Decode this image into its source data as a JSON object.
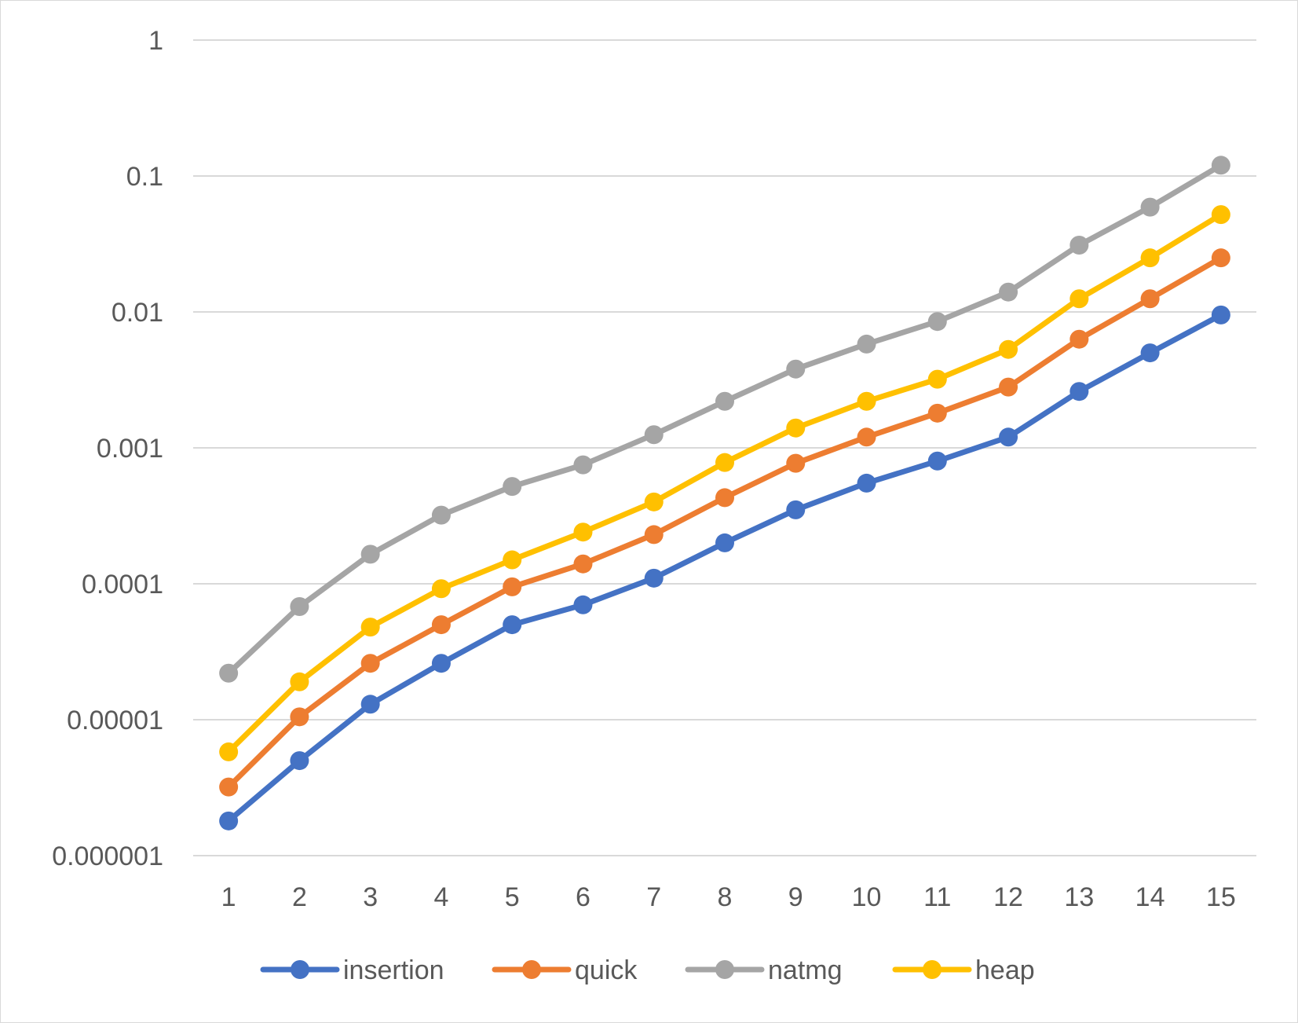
{
  "chart_data": {
    "type": "line",
    "title": "",
    "xlabel": "",
    "ylabel": "",
    "y_scale": "log",
    "ylim": [
      1e-06,
      1
    ],
    "y_ticks": [
      "1",
      "0.1",
      "0.01",
      "0.001",
      "0.0001",
      "0.00001",
      "0.000001"
    ],
    "x": [
      1,
      2,
      3,
      4,
      5,
      6,
      7,
      8,
      9,
      10,
      11,
      12,
      13,
      14,
      15
    ],
    "grid": true,
    "legend_position": "bottom",
    "series": [
      {
        "name": "insertion",
        "color": "#4472C4",
        "values": [
          1.8e-06,
          5e-06,
          1.3e-05,
          2.6e-05,
          5e-05,
          7e-05,
          0.00011,
          0.0002,
          0.00035,
          0.00055,
          0.0008,
          0.0012,
          0.0026,
          0.005,
          0.0095
        ]
      },
      {
        "name": "quick",
        "color": "#ED7D31",
        "values": [
          3.2e-06,
          1.05e-05,
          2.6e-05,
          5e-05,
          9.5e-05,
          0.00014,
          0.00023,
          0.00043,
          0.00077,
          0.0012,
          0.0018,
          0.0028,
          0.0063,
          0.0125,
          0.025
        ]
      },
      {
        "name": "natmg",
        "color": "#A5A5A5",
        "values": [
          2.2e-05,
          6.8e-05,
          0.000165,
          0.00032,
          0.00052,
          0.00075,
          0.00125,
          0.0022,
          0.0038,
          0.0058,
          0.0085,
          0.014,
          0.031,
          0.059,
          0.12
        ]
      },
      {
        "name": "heap",
        "color": "#FFC000",
        "values": [
          5.8e-06,
          1.9e-05,
          4.8e-05,
          9.2e-05,
          0.00015,
          0.00024,
          0.0004,
          0.00078,
          0.0014,
          0.0022,
          0.0032,
          0.0053,
          0.0125,
          0.025,
          0.052
        ]
      }
    ]
  }
}
